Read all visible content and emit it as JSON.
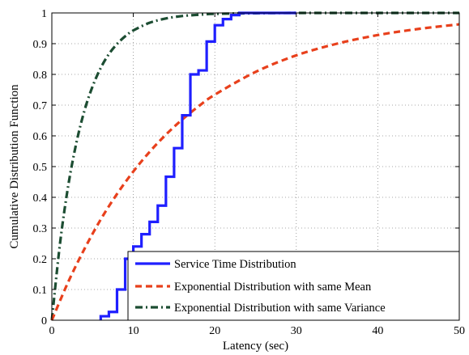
{
  "chart_data": {
    "type": "line",
    "title": "",
    "xlabel": "Latency (sec)",
    "ylabel": "Cumulative Distribution Function",
    "xlim": [
      0,
      50
    ],
    "ylim": [
      0,
      1
    ],
    "xticks": [
      0,
      10,
      20,
      30,
      40,
      50
    ],
    "yticks": [
      0,
      0.1,
      0.2,
      0.3,
      0.4,
      0.5,
      0.6,
      0.7,
      0.8,
      0.9,
      1
    ],
    "xtick_labels": [
      "0",
      "10",
      "20",
      "30",
      "40",
      "50"
    ],
    "ytick_labels": [
      "0",
      "0.1",
      "0.2",
      "0.3",
      "0.4",
      "0.5",
      "0.6",
      "0.7",
      "0.8",
      "0.9",
      "1"
    ],
    "grid": true,
    "legend_position": "bottom-right",
    "series": [
      {
        "name": "Service Time Distribution",
        "style": "step",
        "color": "#1f1fff",
        "dash": "solid",
        "x": [
          6,
          7,
          8,
          9,
          10,
          11,
          12,
          13,
          14,
          15,
          16,
          17,
          18,
          19,
          20,
          21,
          22,
          23,
          30
        ],
        "y": [
          0.013,
          0.027,
          0.1,
          0.2,
          0.24,
          0.28,
          0.32,
          0.373,
          0.467,
          0.56,
          0.667,
          0.8,
          0.813,
          0.907,
          0.96,
          0.98,
          0.993,
          1.0,
          1.0
        ]
      },
      {
        "name": "Exponential Distribution with same Mean",
        "style": "curve",
        "color": "#e8401c",
        "dash": "dashed",
        "x": [
          0,
          2,
          4,
          6,
          8,
          10,
          12,
          14,
          16,
          18,
          20,
          25,
          30,
          35,
          40,
          45,
          50
        ],
        "y": [
          0.0,
          0.124,
          0.232,
          0.328,
          0.411,
          0.484,
          0.548,
          0.604,
          0.653,
          0.696,
          0.734,
          0.808,
          0.862,
          0.9,
          0.928,
          0.948,
          0.963
        ]
      },
      {
        "name": "Exponential Distribution with same Variance",
        "style": "curve",
        "color": "#1c4d32",
        "dash": "dashdot",
        "x": [
          0,
          1,
          2,
          3,
          4,
          5,
          6,
          7,
          8,
          9,
          10,
          12,
          14,
          16,
          18,
          20,
          25,
          30,
          40,
          50
        ],
        "y": [
          0.0,
          0.249,
          0.436,
          0.576,
          0.682,
          0.761,
          0.821,
          0.866,
          0.899,
          0.924,
          0.943,
          0.968,
          0.982,
          0.99,
          0.994,
          0.997,
          0.999,
          1.0,
          1.0,
          1.0
        ]
      }
    ]
  }
}
